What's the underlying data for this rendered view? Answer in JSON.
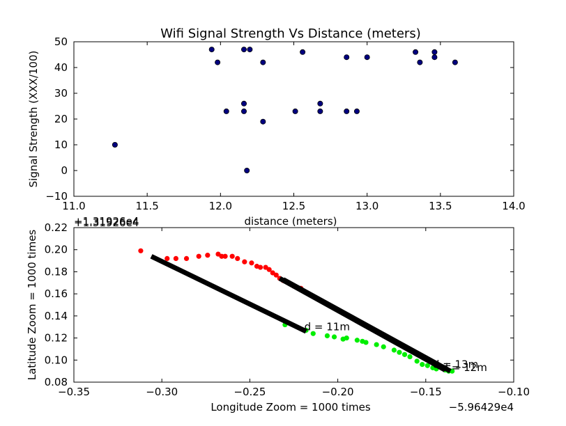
{
  "chart_data": [
    {
      "type": "scatter",
      "title": "Wifi Signal Strength Vs Distance (meters)",
      "xlabel": "distance (meters)",
      "ylabel": "Signal Strength (XXX/100)",
      "xlim": [
        11.0,
        14.0
      ],
      "ylim": [
        -10,
        50
      ],
      "xticks": [
        "11.0",
        "11.5",
        "12.0",
        "12.5",
        "13.0",
        "13.5",
        "14.0"
      ],
      "yticks": [
        "−10",
        "0",
        "10",
        "20",
        "30",
        "40",
        "50"
      ],
      "x_offset_label": "+1.31926e4",
      "grid": false,
      "marker_color": "#00007f",
      "points": [
        {
          "x": 11.28,
          "y": 10
        },
        {
          "x": 11.94,
          "y": 47
        },
        {
          "x": 11.98,
          "y": 42
        },
        {
          "x": 12.04,
          "y": 23
        },
        {
          "x": 12.16,
          "y": 47
        },
        {
          "x": 12.16,
          "y": 26
        },
        {
          "x": 12.16,
          "y": 23
        },
        {
          "x": 12.18,
          "y": 0
        },
        {
          "x": 12.2,
          "y": 47
        },
        {
          "x": 12.29,
          "y": 42
        },
        {
          "x": 12.29,
          "y": 19
        },
        {
          "x": 12.51,
          "y": 23
        },
        {
          "x": 12.56,
          "y": 46
        },
        {
          "x": 12.68,
          "y": 26
        },
        {
          "x": 12.68,
          "y": 23
        },
        {
          "x": 12.86,
          "y": 44
        },
        {
          "x": 12.86,
          "y": 23
        },
        {
          "x": 12.93,
          "y": 23
        },
        {
          "x": 13.0,
          "y": 44
        },
        {
          "x": 13.33,
          "y": 46
        },
        {
          "x": 13.36,
          "y": 42
        },
        {
          "x": 13.46,
          "y": 46
        },
        {
          "x": 13.46,
          "y": 44
        },
        {
          "x": 13.6,
          "y": 42
        }
      ]
    },
    {
      "type": "scatter",
      "xlabel": "Longitude Zoom = 1000 times",
      "ylabel": "Latitude Zoom = 1000 times",
      "xlim": [
        -0.35,
        -0.1
      ],
      "ylim": [
        0.08,
        0.22
      ],
      "xticks": [
        "−0.35",
        "−0.30",
        "−0.25",
        "−0.20",
        "−0.15",
        "−0.10"
      ],
      "yticks": [
        "0.08",
        "0.10",
        "0.12",
        "0.14",
        "0.16",
        "0.18",
        "0.20",
        "0.22"
      ],
      "x_offset_label": "−5.96429e4",
      "y_offset_label": "+1.31926e4",
      "grid": false,
      "series": [
        {
          "color": "#ff0000",
          "points": [
            {
              "x": -0.312,
              "y": 0.199
            },
            {
              "x": -0.297,
              "y": 0.192
            },
            {
              "x": -0.292,
              "y": 0.192
            },
            {
              "x": -0.286,
              "y": 0.192
            },
            {
              "x": -0.279,
              "y": 0.194
            },
            {
              "x": -0.274,
              "y": 0.195
            },
            {
              "x": -0.268,
              "y": 0.196
            },
            {
              "x": -0.266,
              "y": 0.194
            },
            {
              "x": -0.264,
              "y": 0.194
            },
            {
              "x": -0.26,
              "y": 0.194
            },
            {
              "x": -0.257,
              "y": 0.192
            },
            {
              "x": -0.253,
              "y": 0.189
            },
            {
              "x": -0.249,
              "y": 0.188
            },
            {
              "x": -0.246,
              "y": 0.185
            },
            {
              "x": -0.244,
              "y": 0.184
            },
            {
              "x": -0.241,
              "y": 0.184
            },
            {
              "x": -0.239,
              "y": 0.182
            },
            {
              "x": -0.237,
              "y": 0.179
            },
            {
              "x": -0.235,
              "y": 0.177
            },
            {
              "x": -0.233,
              "y": 0.174
            },
            {
              "x": -0.231,
              "y": 0.172
            },
            {
              "x": -0.228,
              "y": 0.17
            },
            {
              "x": -0.225,
              "y": 0.167
            },
            {
              "x": -0.221,
              "y": 0.165
            }
          ]
        },
        {
          "color": "#00ee00",
          "points": [
            {
              "x": -0.23,
              "y": 0.132
            },
            {
              "x": -0.218,
              "y": 0.127
            },
            {
              "x": -0.214,
              "y": 0.124
            },
            {
              "x": -0.206,
              "y": 0.122
            },
            {
              "x": -0.202,
              "y": 0.121
            },
            {
              "x": -0.197,
              "y": 0.119
            },
            {
              "x": -0.195,
              "y": 0.12
            },
            {
              "x": -0.189,
              "y": 0.118
            },
            {
              "x": -0.186,
              "y": 0.117
            },
            {
              "x": -0.184,
              "y": 0.116
            },
            {
              "x": -0.178,
              "y": 0.114
            },
            {
              "x": -0.174,
              "y": 0.112
            },
            {
              "x": -0.168,
              "y": 0.109
            },
            {
              "x": -0.165,
              "y": 0.107
            },
            {
              "x": -0.162,
              "y": 0.105
            },
            {
              "x": -0.159,
              "y": 0.103
            },
            {
              "x": -0.155,
              "y": 0.099
            },
            {
              "x": -0.152,
              "y": 0.096
            },
            {
              "x": -0.149,
              "y": 0.095
            },
            {
              "x": -0.146,
              "y": 0.093
            },
            {
              "x": -0.144,
              "y": 0.092
            },
            {
              "x": -0.142,
              "y": 0.094
            },
            {
              "x": -0.139,
              "y": 0.091
            },
            {
              "x": -0.137,
              "y": 0.09
            },
            {
              "x": -0.135,
              "y": 0.09
            }
          ]
        }
      ],
      "lines": [
        {
          "x1": -0.306,
          "y1": 0.194,
          "x2": -0.218,
          "y2": 0.126,
          "color": "#000000"
        },
        {
          "x1": -0.233,
          "y1": 0.174,
          "x2": -0.139,
          "y2": 0.091,
          "color": "#000000"
        },
        {
          "x1": -0.231,
          "y1": 0.173,
          "x2": -0.136,
          "y2": 0.09,
          "color": "#000000"
        }
      ],
      "annotations": [
        {
          "text": "d = 11m",
          "x": -0.219,
          "y": 0.127
        },
        {
          "text": "d = 13m",
          "x": -0.146,
          "y": 0.093
        },
        {
          "text": "d = 12m",
          "x": -0.141,
          "y": 0.09
        }
      ]
    }
  ]
}
